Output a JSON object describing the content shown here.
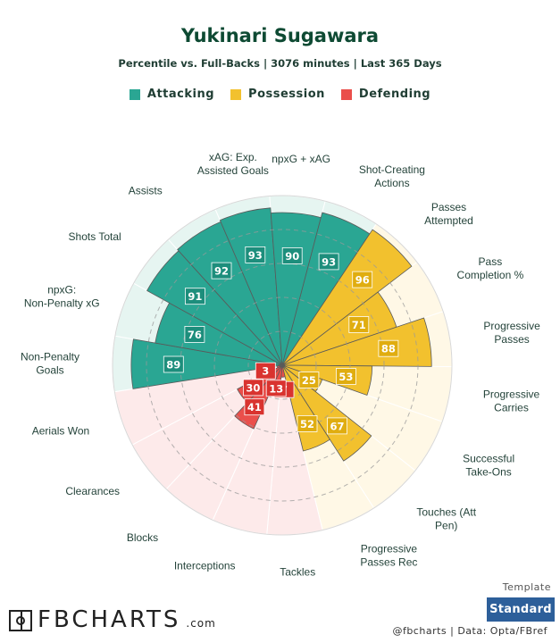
{
  "header": {
    "title": "Yukinari Sugawara",
    "subtitle": "Percentile vs. Full-Backs | 3076 minutes | Last 365 Days"
  },
  "legend": [
    {
      "label": "Attacking",
      "color": "#2aa693"
    },
    {
      "label": "Possession",
      "color": "#f2c12e"
    },
    {
      "label": "Defending",
      "color": "#ea4f4b"
    }
  ],
  "colors": {
    "Attacking": {
      "fill": "#2aa693",
      "bg": "#e6f5f1",
      "box": "#1d8e7c"
    },
    "Possession": {
      "fill": "#f2c12e",
      "bg": "#fff8e6",
      "box": "#e0ad10"
    },
    "Defending": {
      "fill": "#ea4f4b",
      "bg": "#fdeaea",
      "box": "#d9332f"
    }
  },
  "chart_data": {
    "type": "radial-bar",
    "scale": [
      0,
      100
    ],
    "rings": [
      20,
      40,
      60,
      80
    ],
    "grid": true,
    "start_angle_deg": -90,
    "direction": "counterclockwise",
    "metrics": [
      {
        "label": "Non-Penalty Goals",
        "value": 89,
        "category": "Attacking"
      },
      {
        "label": "npxG: Non-Penalty xG",
        "value": 76,
        "category": "Attacking"
      },
      {
        "label": "Shots Total",
        "value": 91,
        "category": "Attacking"
      },
      {
        "label": "Assists",
        "value": 92,
        "category": "Attacking"
      },
      {
        "label": "xAG: Exp. Assisted Goals",
        "value": 93,
        "category": "Attacking"
      },
      {
        "label": "npxG + xAG",
        "value": 90,
        "category": "Attacking"
      },
      {
        "label": "Shot-Creating Actions",
        "value": 93,
        "category": "Attacking"
      },
      {
        "label": "Passes Attempted",
        "value": 96,
        "category": "Possession"
      },
      {
        "label": "Pass Completion %",
        "value": 71,
        "category": "Possession"
      },
      {
        "label": "Progressive Passes",
        "value": 88,
        "category": "Possession"
      },
      {
        "label": "Progressive Carries",
        "value": 53,
        "category": "Possession"
      },
      {
        "label": "Successful Take-Ons",
        "value": 25,
        "category": "Possession"
      },
      {
        "label": "Touches (Att Pen)",
        "value": 67,
        "category": "Possession"
      },
      {
        "label": "Progressive Passes Rec",
        "value": 52,
        "category": "Possession"
      },
      {
        "label": "Tackles",
        "value": 7,
        "category": "Defending"
      },
      {
        "label": "Interceptions",
        "value": 13,
        "category": "Defending"
      },
      {
        "label": "Blocks",
        "value": 41,
        "category": "Defending"
      },
      {
        "label": "Clearances",
        "value": 30,
        "category": "Defending"
      },
      {
        "label": "Aerials Won",
        "value": 3,
        "category": "Defending"
      }
    ]
  },
  "footer": {
    "template_label": "Template",
    "template_button": "Standard",
    "logo_text": "FBCHARTS",
    "logo_suffix": ".com",
    "credit": "@fbcharts | Data: Opta/FBref"
  }
}
